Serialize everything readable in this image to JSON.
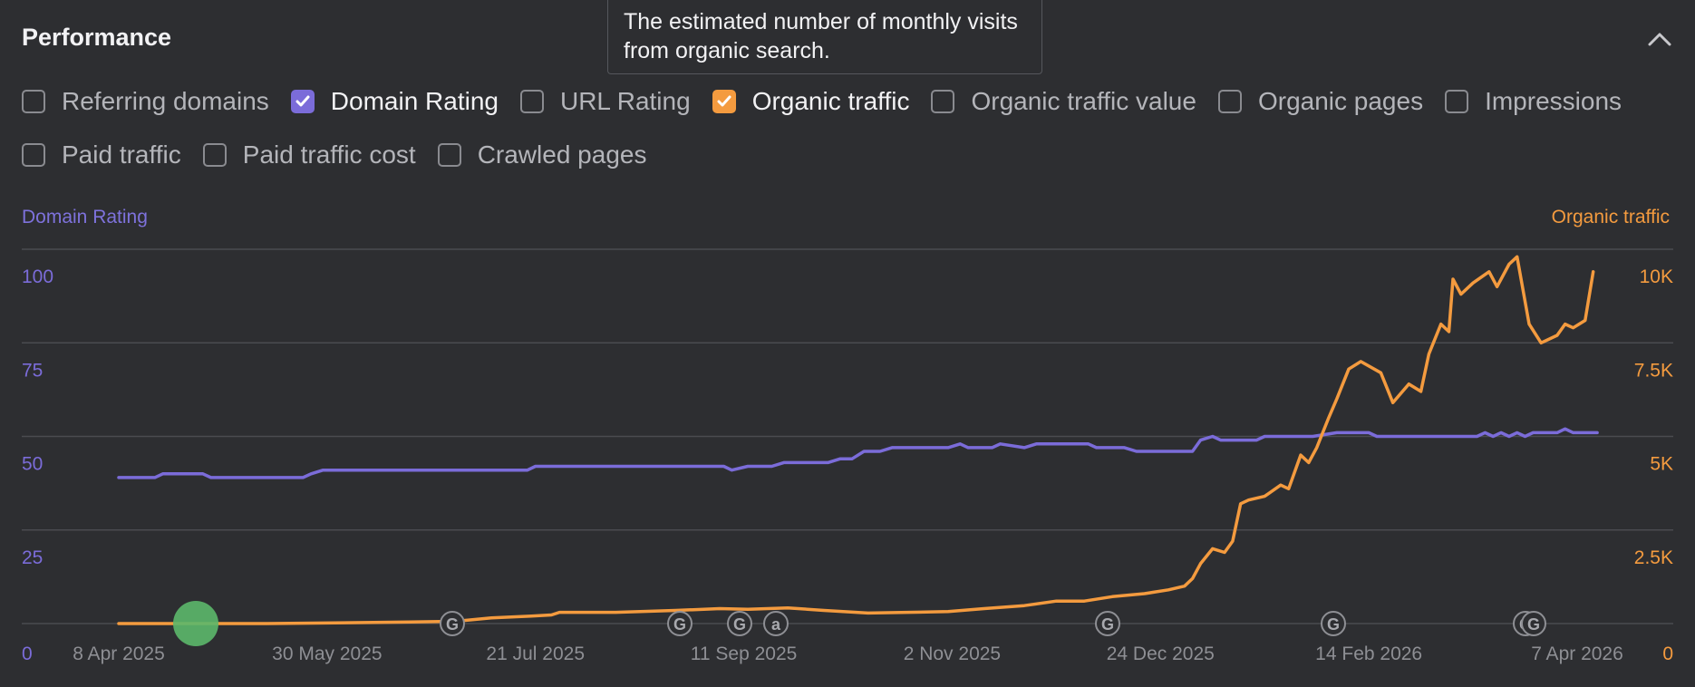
{
  "header": {
    "title": "Performance",
    "tooltip": "The estimated number of monthly visits from organic search."
  },
  "metrics": [
    {
      "label": "Referring domains",
      "checked": false,
      "color": ""
    },
    {
      "label": "Domain Rating",
      "checked": true,
      "color": "#7b6cd9"
    },
    {
      "label": "URL Rating",
      "checked": false,
      "color": ""
    },
    {
      "label": "Organic traffic",
      "checked": true,
      "color": "#f49b3f"
    },
    {
      "label": "Organic traffic value",
      "checked": false,
      "color": ""
    },
    {
      "label": "Organic pages",
      "checked": false,
      "color": ""
    },
    {
      "label": "Impressions",
      "checked": false,
      "color": ""
    },
    {
      "label": "Paid traffic",
      "checked": false,
      "color": ""
    },
    {
      "label": "Paid traffic cost",
      "checked": false,
      "color": ""
    },
    {
      "label": "Crawled pages",
      "checked": false,
      "color": ""
    }
  ],
  "colors": {
    "domain_rating": "#7b6cd9",
    "organic_traffic": "#f49b3f",
    "grid": "#4a4b50",
    "marker": "#5cb86c"
  },
  "chart_data": {
    "type": "line",
    "left_axis_label": "Domain Rating",
    "right_axis_label": "Organic traffic",
    "y_left_ticks": [
      "0",
      "25",
      "50",
      "75",
      "100"
    ],
    "y_right_ticks": [
      "0",
      "2.5K",
      "5K",
      "7.5K",
      "10K"
    ],
    "y_left_range": [
      0,
      100
    ],
    "y_right_range": [
      0,
      10000
    ],
    "x_ticks": [
      "8 Apr 2025",
      "30 May 2025",
      "21 Jul 2025",
      "11 Sep 2025",
      "2 Nov 2025",
      "24 Dec 2025",
      "14 Feb 2026",
      "7 Apr 2026"
    ],
    "x_range": [
      "2025-04-08",
      "2026-04-07"
    ],
    "grid": true,
    "legend": "none",
    "series": [
      {
        "name": "Domain Rating",
        "axis": "left",
        "points": [
          [
            "2025-04-08",
            39
          ],
          [
            "2025-04-17",
            39
          ],
          [
            "2025-04-19",
            40
          ],
          [
            "2025-04-29",
            40
          ],
          [
            "2025-05-01",
            39
          ],
          [
            "2025-05-24",
            39
          ],
          [
            "2025-05-26",
            40
          ],
          [
            "2025-05-29",
            41
          ],
          [
            "2025-07-19",
            41
          ],
          [
            "2025-07-21",
            42
          ],
          [
            "2025-09-06",
            42
          ],
          [
            "2025-09-08",
            41
          ],
          [
            "2025-09-12",
            42
          ],
          [
            "2025-09-18",
            42
          ],
          [
            "2025-09-21",
            43
          ],
          [
            "2025-10-02",
            43
          ],
          [
            "2025-10-05",
            44
          ],
          [
            "2025-10-08",
            44
          ],
          [
            "2025-10-11",
            46
          ],
          [
            "2025-10-15",
            46
          ],
          [
            "2025-10-18",
            47
          ],
          [
            "2025-11-01",
            47
          ],
          [
            "2025-11-04",
            48
          ],
          [
            "2025-11-06",
            47
          ],
          [
            "2025-11-12",
            47
          ],
          [
            "2025-11-14",
            48
          ],
          [
            "2025-11-20",
            47
          ],
          [
            "2025-11-23",
            48
          ],
          [
            "2025-11-30",
            48
          ],
          [
            "2025-12-06",
            48
          ],
          [
            "2025-12-08",
            47
          ],
          [
            "2025-12-15",
            47
          ],
          [
            "2025-12-18",
            46
          ],
          [
            "2025-12-24",
            46
          ],
          [
            "2025-12-31",
            46
          ],
          [
            "2026-01-01",
            46
          ],
          [
            "2026-01-03",
            49
          ],
          [
            "2026-01-06",
            50
          ],
          [
            "2026-01-08",
            49
          ],
          [
            "2026-01-17",
            49
          ],
          [
            "2026-01-19",
            50
          ],
          [
            "2026-01-31",
            50
          ],
          [
            "2026-02-06",
            51
          ],
          [
            "2026-02-14",
            51
          ],
          [
            "2026-02-16",
            50
          ],
          [
            "2026-03-13",
            50
          ],
          [
            "2026-03-15",
            51
          ],
          [
            "2026-03-17",
            50
          ],
          [
            "2026-03-19",
            51
          ],
          [
            "2026-03-21",
            50
          ],
          [
            "2026-03-23",
            51
          ],
          [
            "2026-03-25",
            50
          ],
          [
            "2026-03-27",
            51
          ],
          [
            "2026-04-02",
            51
          ],
          [
            "2026-04-04",
            52
          ],
          [
            "2026-04-06",
            51
          ],
          [
            "2026-04-12",
            51
          ]
        ]
      },
      {
        "name": "Organic traffic",
        "axis": "right",
        "points": [
          [
            "2025-04-08",
            0
          ],
          [
            "2025-05-15",
            0
          ],
          [
            "2025-06-01",
            20
          ],
          [
            "2025-06-20",
            40
          ],
          [
            "2025-07-01",
            60
          ],
          [
            "2025-07-10",
            150
          ],
          [
            "2025-07-20",
            200
          ],
          [
            "2025-07-25",
            230
          ],
          [
            "2025-07-27",
            300
          ],
          [
            "2025-08-10",
            300
          ],
          [
            "2025-08-25",
            350
          ],
          [
            "2025-09-05",
            400
          ],
          [
            "2025-09-12",
            380
          ],
          [
            "2025-09-22",
            420
          ],
          [
            "2025-10-01",
            350
          ],
          [
            "2025-10-12",
            280
          ],
          [
            "2025-10-22",
            300
          ],
          [
            "2025-11-01",
            320
          ],
          [
            "2025-11-10",
            400
          ],
          [
            "2025-11-20",
            480
          ],
          [
            "2025-11-28",
            600
          ],
          [
            "2025-12-05",
            600
          ],
          [
            "2025-12-12",
            720
          ],
          [
            "2025-12-20",
            800
          ],
          [
            "2025-12-26",
            900
          ],
          [
            "2025-12-30",
            1000
          ],
          [
            "2026-01-01",
            1200
          ],
          [
            "2026-01-03",
            1600
          ],
          [
            "2026-01-06",
            2000
          ],
          [
            "2026-01-09",
            1900
          ],
          [
            "2026-01-11",
            2200
          ],
          [
            "2026-01-13",
            3200
          ],
          [
            "2026-01-15",
            3300
          ],
          [
            "2026-01-19",
            3400
          ],
          [
            "2026-01-23",
            3700
          ],
          [
            "2026-01-25",
            3600
          ],
          [
            "2026-01-28",
            4500
          ],
          [
            "2026-01-30",
            4300
          ],
          [
            "2026-02-01",
            4700
          ],
          [
            "2026-02-04",
            5500
          ],
          [
            "2026-02-06",
            6000
          ],
          [
            "2026-02-09",
            6800
          ],
          [
            "2026-02-12",
            7000
          ],
          [
            "2026-02-17",
            6700
          ],
          [
            "2026-02-20",
            5900
          ],
          [
            "2026-02-24",
            6400
          ],
          [
            "2026-02-27",
            6200
          ],
          [
            "2026-03-01",
            7200
          ],
          [
            "2026-03-04",
            8000
          ],
          [
            "2026-03-06",
            7800
          ],
          [
            "2026-03-07",
            9200
          ],
          [
            "2026-03-09",
            8800
          ],
          [
            "2026-03-12",
            9100
          ],
          [
            "2026-03-16",
            9400
          ],
          [
            "2026-03-18",
            9000
          ],
          [
            "2026-03-21",
            9600
          ],
          [
            "2026-03-23",
            9800
          ],
          [
            "2026-03-26",
            8000
          ],
          [
            "2026-03-29",
            7500
          ],
          [
            "2026-04-02",
            7700
          ],
          [
            "2026-04-04",
            8000
          ],
          [
            "2026-04-06",
            7900
          ],
          [
            "2026-04-09",
            8100
          ],
          [
            "2026-04-11",
            9400
          ]
        ]
      }
    ],
    "markers": [
      "G",
      "G",
      "G",
      "a",
      "G",
      "G",
      "G",
      "G"
    ]
  }
}
